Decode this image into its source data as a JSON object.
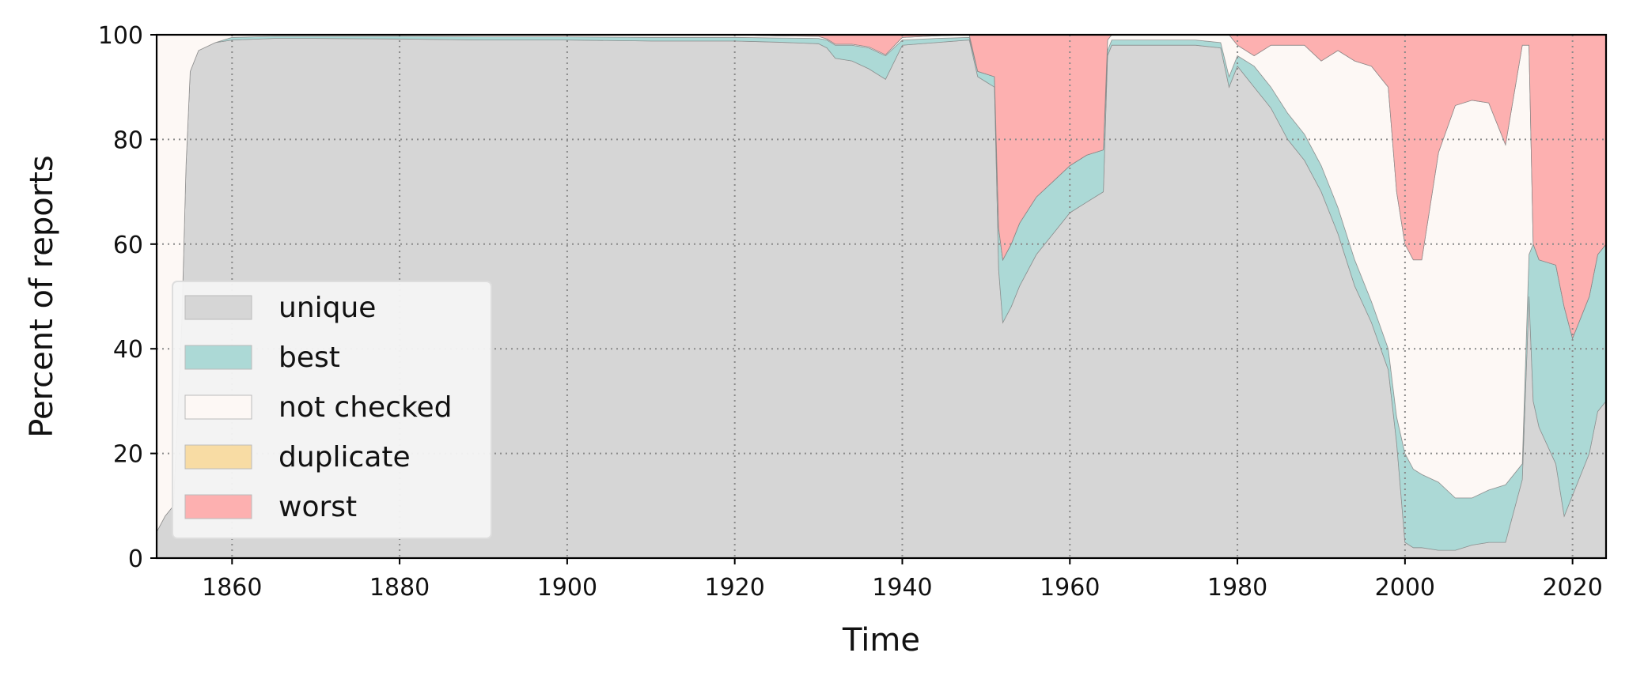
{
  "chart_data": {
    "type": "area",
    "stacked": true,
    "xlabel": "Time",
    "ylabel": "Percent of reports",
    "xlim": [
      1851,
      2024
    ],
    "ylim": [
      0,
      100
    ],
    "x_ticks": [
      1860,
      1880,
      1900,
      1920,
      1940,
      1960,
      1980,
      2000,
      2020
    ],
    "y_ticks": [
      0,
      20,
      40,
      60,
      80,
      100
    ],
    "grid": true,
    "legend_position": "lower-left",
    "legend": [
      {
        "name": "unique",
        "color": "#d6d6d6"
      },
      {
        "name": "best",
        "color": "#acd9d6"
      },
      {
        "name": "not checked",
        "color": "#fdf8f5"
      },
      {
        "name": "duplicate",
        "color": "#f8dca4"
      },
      {
        "name": "worst",
        "color": "#fdb0b0"
      }
    ],
    "x": [
      1851,
      1852,
      1853,
      1854,
      1854.5,
      1855,
      1856,
      1858,
      1860,
      1865,
      1870,
      1880,
      1890,
      1900,
      1910,
      1920,
      1925,
      1930,
      1931,
      1932,
      1934,
      1936,
      1938,
      1940,
      1944,
      1948,
      1949,
      1950,
      1951,
      1951.5,
      1952,
      1953,
      1954,
      1956,
      1958,
      1960,
      1962,
      1964,
      1964.5,
      1965,
      1970,
      1975,
      1978,
      1979,
      1980,
      1982,
      1984,
      1986,
      1988,
      1990,
      1992,
      1994,
      1996,
      1998,
      1999,
      2000,
      2001,
      2002,
      2004,
      2006,
      2008,
      2010,
      2012,
      2014,
      2014.8,
      2015.3,
      2016,
      2018,
      2019,
      2020,
      2022,
      2023,
      2024
    ],
    "series": [
      {
        "name": "unique",
        "values": [
          5,
          8,
          10,
          45,
          75,
          93,
          97,
          98.5,
          99,
          99.3,
          99.3,
          99.2,
          99,
          99,
          98.8,
          98.8,
          98.6,
          98.3,
          97.5,
          95.5,
          95,
          93.5,
          91.5,
          98,
          98.5,
          99,
          92,
          91,
          90,
          55,
          45,
          48,
          52,
          58,
          62,
          66,
          68,
          70,
          96,
          98,
          98,
          98,
          97.5,
          90,
          94,
          90,
          86,
          80,
          76,
          70,
          62,
          52,
          45,
          36,
          22,
          3,
          2,
          2,
          1.5,
          1.5,
          2.5,
          3,
          3,
          15,
          50,
          30,
          25,
          18,
          8,
          12,
          20,
          28,
          30
        ]
      },
      {
        "name": "best",
        "values": [
          0,
          0,
          0,
          0,
          0,
          0,
          0,
          0,
          0.5,
          0.4,
          0.4,
          0.5,
          0.6,
          0.6,
          0.7,
          0.7,
          0.8,
          1,
          1.5,
          2.5,
          3,
          4,
          4.5,
          1,
          0.8,
          0.5,
          1,
          1.5,
          2,
          8,
          12,
          12,
          12,
          11,
          10,
          9,
          9,
          8,
          1,
          1,
          1,
          1,
          1,
          2,
          2,
          4,
          4,
          5,
          5,
          5,
          5,
          5,
          4,
          4,
          5,
          17,
          15,
          14,
          13,
          10,
          9,
          10,
          11,
          3,
          8,
          30,
          32,
          38,
          40,
          30,
          30,
          30,
          30
        ]
      },
      {
        "name": "not checked",
        "values": [
          95,
          92,
          90,
          55,
          25,
          7,
          3,
          1.5,
          0.5,
          0.3,
          0.3,
          0.3,
          0.4,
          0.4,
          0.5,
          0.5,
          0.4,
          0.4,
          0.2,
          0.2,
          0.2,
          0.2,
          0.2,
          0.5,
          0.5,
          0.5,
          0,
          0,
          0,
          0,
          0,
          0,
          0,
          0,
          0,
          0,
          0,
          0,
          2,
          1,
          1,
          1,
          1.5,
          8,
          2,
          2,
          8,
          13,
          17,
          20,
          30,
          38,
          45,
          50,
          43,
          40,
          40,
          41,
          63,
          75,
          76,
          74,
          65,
          80,
          40,
          0,
          0,
          0,
          0,
          0,
          0,
          0,
          0
        ]
      },
      {
        "name": "duplicate",
        "values": [
          0,
          0,
          0,
          0,
          0,
          0,
          0,
          0,
          0,
          0,
          0,
          0,
          0,
          0,
          0,
          0,
          0,
          0,
          0,
          0,
          0,
          0,
          0,
          0,
          0,
          0,
          0,
          0,
          0,
          0,
          0,
          0,
          0,
          0,
          0,
          0,
          0,
          0,
          0,
          0,
          0,
          0,
          0,
          0,
          0,
          0,
          0,
          0,
          0,
          0,
          0,
          0,
          0,
          0,
          0,
          0,
          0,
          0,
          0,
          0,
          0,
          0,
          0,
          0,
          0,
          0,
          0,
          0,
          0,
          0,
          0,
          0,
          0
        ]
      },
      {
        "name": "worst",
        "values": [
          0,
          0,
          0,
          0,
          0,
          0,
          0,
          0,
          0,
          0,
          0,
          0,
          0,
          0,
          0,
          0,
          0.2,
          0.3,
          0.8,
          1.8,
          1.8,
          2.3,
          3.8,
          0.5,
          0.2,
          0,
          7,
          7.5,
          8,
          37,
          43,
          40,
          36,
          31,
          28,
          25,
          23,
          22,
          1,
          0,
          0,
          0,
          0,
          0,
          2,
          4,
          2,
          2,
          2,
          5,
          3,
          5,
          6,
          10,
          30,
          40,
          43,
          43,
          22.5,
          13.5,
          12.5,
          13,
          21,
          2,
          2,
          40,
          43,
          44,
          52,
          58,
          50,
          42,
          40
        ]
      }
    ]
  }
}
